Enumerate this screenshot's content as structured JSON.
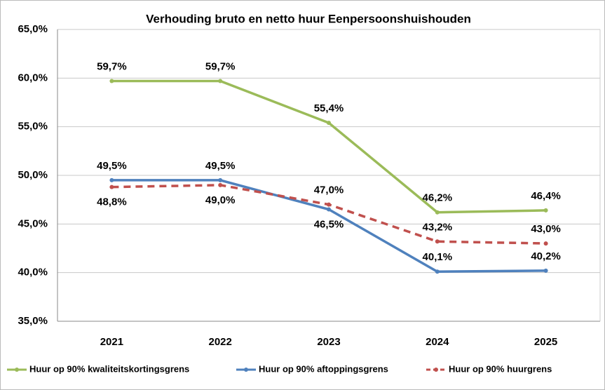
{
  "chart_data": {
    "type": "line",
    "title": "Verhouding bruto en netto huur Eenpersoonshuishouden",
    "categories": [
      "2021",
      "2022",
      "2023",
      "2024",
      "2025"
    ],
    "series": [
      {
        "name": "Huur op 90% kwaliteitskortingsgrens",
        "color": "#9bbb59",
        "dashed": false,
        "values": [
          59.7,
          59.7,
          55.4,
          46.2,
          46.4
        ],
        "value_labels": [
          "59,7%",
          "59,7%",
          "55,4%",
          "46,2%",
          "46,4%"
        ]
      },
      {
        "name": "Huur op 90% aftoppingsgrens",
        "color": "#4f81bd",
        "dashed": false,
        "values": [
          49.5,
          49.5,
          46.5,
          40.1,
          40.2
        ],
        "value_labels": [
          "49,5%",
          "49,5%",
          "46,5%",
          "40,1%",
          "40,2%"
        ]
      },
      {
        "name": "Huur op 90% huurgrens",
        "color": "#c0504d",
        "dashed": true,
        "values": [
          48.8,
          49.0,
          47.0,
          43.2,
          43.0
        ],
        "value_labels": [
          "48,8%",
          "49,0%",
          "47,0%",
          "43,2%",
          "43,0%"
        ]
      }
    ],
    "ylim": [
      35,
      65
    ],
    "yticks": [
      {
        "value": 35,
        "label": "35,0%"
      },
      {
        "value": 40,
        "label": "40,0%"
      },
      {
        "value": 45,
        "label": "45,0%"
      },
      {
        "value": 50,
        "label": "50,0%"
      },
      {
        "value": 55,
        "label": "55,0%"
      },
      {
        "value": 60,
        "label": "60,0%"
      },
      {
        "value": 65,
        "label": "65,0%"
      }
    ],
    "grid": true,
    "legend": "bottom"
  }
}
